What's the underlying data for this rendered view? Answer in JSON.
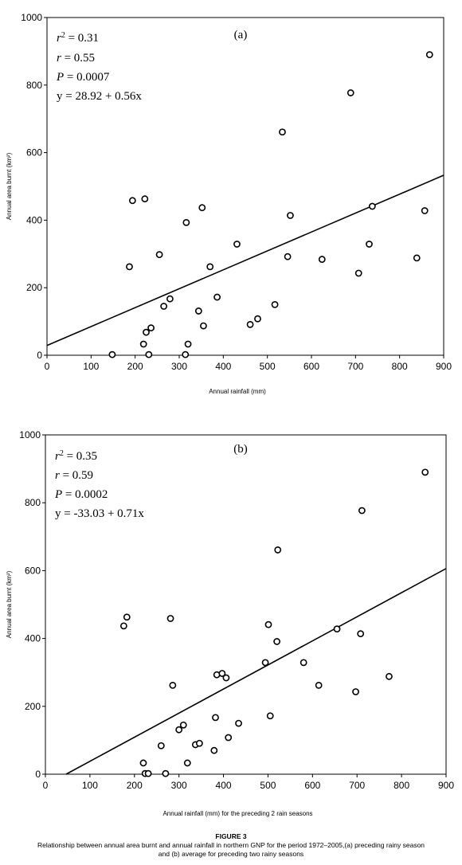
{
  "figure": {
    "label": "FIGURE 3",
    "caption_line1": "Relationship between annual area burnt and annual rainfall in northern GNP for the period 1972–2005,(a) preceding rainy season",
    "caption_line2": "and (b) average for preceding two rainy seasons"
  },
  "chart_data": [
    {
      "type": "scatter",
      "panel_label": "(a)",
      "xlabel": "Annual rainfall (mm)",
      "ylabel": "Annual area  burnt (km²)",
      "xlim": [
        0,
        900
      ],
      "ylim": [
        0,
        1000
      ],
      "xticks": [
        0,
        100,
        200,
        300,
        400,
        500,
        600,
        700,
        800,
        900
      ],
      "yticks": [
        0,
        200,
        400,
        600,
        800,
        1000
      ],
      "stats": {
        "r2_label": "r",
        "r2_sup": "2",
        "r2_value": " = 0.31",
        "r_label": "r",
        "r_value": " = 0.55",
        "p_label": "P",
        "p_value": " = 0.0007",
        "equation": "y = 28.92 + 0.56x"
      },
      "regression": {
        "intercept": 28.92,
        "slope": 0.56,
        "x_range": [
          0,
          900
        ]
      },
      "points": [
        [
          148,
          2
        ],
        [
          187,
          262
        ],
        [
          194,
          458
        ],
        [
          219,
          33
        ],
        [
          222,
          463
        ],
        [
          225,
          68
        ],
        [
          231,
          2
        ],
        [
          236,
          81
        ],
        [
          255,
          298
        ],
        [
          265,
          145
        ],
        [
          279,
          167
        ],
        [
          314,
          2
        ],
        [
          316,
          393
        ],
        [
          320,
          33
        ],
        [
          344,
          131
        ],
        [
          352,
          437
        ],
        [
          355,
          87
        ],
        [
          370,
          262
        ],
        [
          386,
          172
        ],
        [
          431,
          329
        ],
        [
          461,
          91
        ],
        [
          478,
          108
        ],
        [
          517,
          150
        ],
        [
          534,
          661
        ],
        [
          546,
          292
        ],
        [
          552,
          414
        ],
        [
          624,
          284
        ],
        [
          689,
          777
        ],
        [
          707,
          243
        ],
        [
          731,
          329
        ],
        [
          738,
          441
        ],
        [
          839,
          288
        ],
        [
          857,
          428
        ],
        [
          868,
          890
        ]
      ]
    },
    {
      "type": "scatter",
      "panel_label": "(b)",
      "xlabel": "Annual rainfall (mm) for the  preceding 2 rain seasons",
      "ylabel": "Annual area  burnt (km²)",
      "xlim": [
        0,
        900
      ],
      "ylim": [
        0,
        1000
      ],
      "xticks": [
        0,
        100,
        200,
        300,
        400,
        500,
        600,
        700,
        800,
        900
      ],
      "yticks": [
        0,
        200,
        400,
        600,
        800,
        1000
      ],
      "stats": {
        "r2_label": "r",
        "r2_sup": "2",
        "r2_value": " = 0.35",
        "r_label": "r",
        "r_value": " = 0.59",
        "p_label": "P",
        "p_value": " = 0.0002",
        "equation": "y = -33.03 + 0.71x"
      },
      "regression": {
        "intercept": -33.03,
        "slope": 0.71,
        "x_range": [
          46.5,
          900
        ]
      },
      "points": [
        [
          176,
          437
        ],
        [
          183,
          463
        ],
        [
          220,
          33
        ],
        [
          224,
          2
        ],
        [
          231,
          2
        ],
        [
          260,
          84
        ],
        [
          270,
          2
        ],
        [
          281,
          459
        ],
        [
          286,
          262
        ],
        [
          300,
          131
        ],
        [
          310,
          145
        ],
        [
          319,
          33
        ],
        [
          337,
          87
        ],
        [
          346,
          91
        ],
        [
          379,
          70
        ],
        [
          382,
          167
        ],
        [
          385,
          293
        ],
        [
          397,
          297
        ],
        [
          406,
          284
        ],
        [
          411,
          108
        ],
        [
          434,
          150
        ],
        [
          494,
          329
        ],
        [
          501,
          441
        ],
        [
          505,
          172
        ],
        [
          520,
          391
        ],
        [
          522,
          661
        ],
        [
          580,
          329
        ],
        [
          614,
          262
        ],
        [
          655,
          428
        ],
        [
          697,
          243
        ],
        [
          708,
          414
        ],
        [
          711,
          777
        ],
        [
          772,
          288
        ],
        [
          853,
          890
        ]
      ]
    }
  ]
}
